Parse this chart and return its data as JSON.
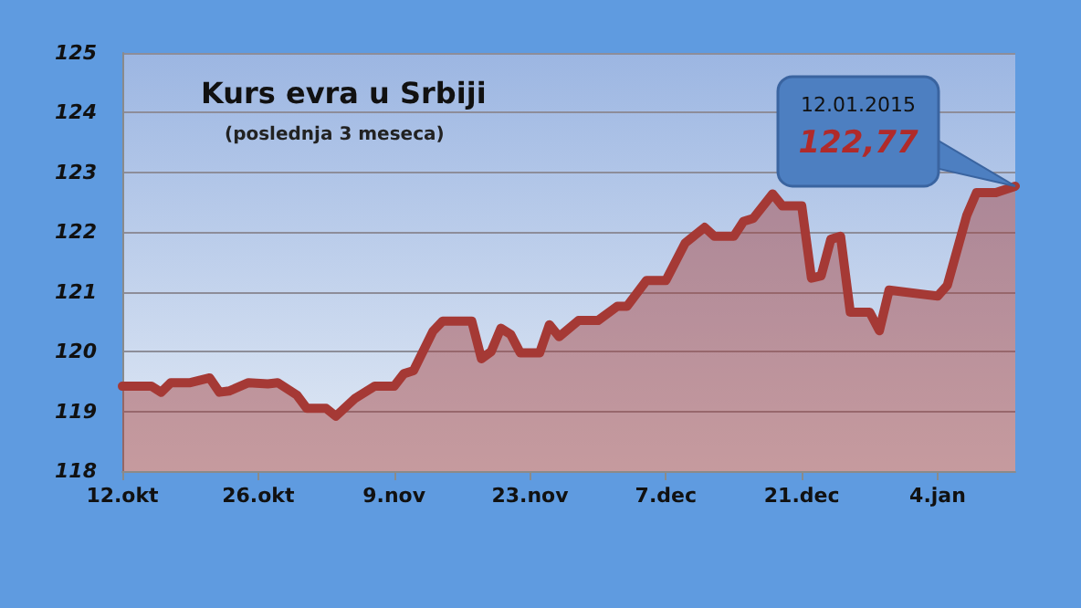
{
  "chart_data": {
    "type": "area",
    "title": "Kurs evra u Srbiji",
    "subtitle": "(poslednja 3 meseca)",
    "x": [
      "2014-10-12",
      "2014-10-15",
      "2014-10-16",
      "2014-10-17",
      "2014-10-19",
      "2014-10-21",
      "2014-10-22",
      "2014-10-23",
      "2014-10-25",
      "2014-10-27",
      "2014-10-28",
      "2014-10-30",
      "2014-10-31",
      "2014-11-02",
      "2014-11-03",
      "2014-11-05",
      "2014-11-07",
      "2014-11-09",
      "2014-11-10",
      "2014-11-11",
      "2014-11-13",
      "2014-11-14",
      "2014-11-17",
      "2014-11-18",
      "2014-11-19",
      "2014-11-20",
      "2014-11-21",
      "2014-11-22",
      "2014-11-24",
      "2014-11-25",
      "2014-11-26",
      "2014-11-28",
      "2014-11-30",
      "2014-12-02",
      "2014-12-03",
      "2014-12-05",
      "2014-12-07",
      "2014-12-09",
      "2014-12-11",
      "2014-12-12",
      "2014-12-14",
      "2014-12-15",
      "2014-12-16",
      "2014-12-18",
      "2014-12-19",
      "2014-12-21",
      "2014-12-22",
      "2014-12-23",
      "2014-12-24",
      "2014-12-25",
      "2014-12-26",
      "2014-12-28",
      "2014-12-29",
      "2014-12-30",
      "2015-01-04",
      "2015-01-05",
      "2015-01-07",
      "2015-01-08",
      "2015-01-10",
      "2015-01-12"
    ],
    "series": [
      {
        "color": "#a53935",
        "values": [
          119.42,
          119.42,
          119.32,
          119.48,
          119.48,
          119.56,
          119.32,
          119.34,
          119.48,
          119.46,
          119.48,
          119.27,
          119.05,
          119.05,
          118.92,
          119.22,
          119.42,
          119.42,
          119.63,
          119.68,
          120.34,
          120.51,
          120.51,
          119.88,
          120.0,
          120.39,
          120.29,
          119.98,
          119.98,
          120.45,
          120.25,
          120.52,
          120.52,
          120.76,
          120.76,
          121.19,
          121.19,
          121.82,
          122.08,
          121.93,
          121.93,
          122.18,
          122.23,
          122.64,
          122.44,
          122.44,
          121.23,
          121.27,
          121.88,
          121.93,
          120.66,
          120.66,
          120.35,
          121.03,
          120.93,
          121.11,
          122.28,
          122.66,
          122.66,
          122.77
        ]
      }
    ],
    "xlim": [
      "2014-10-12",
      "2015-01-12"
    ],
    "xticks": [
      {
        "value": "2014-10-12",
        "label": "12.okt"
      },
      {
        "value": "2014-10-26",
        "label": "26.okt"
      },
      {
        "value": "2014-11-09",
        "label": "9.nov"
      },
      {
        "value": "2014-11-23",
        "label": "23.nov"
      },
      {
        "value": "2014-12-07",
        "label": "7.dec"
      },
      {
        "value": "2014-12-21",
        "label": "21.dec"
      },
      {
        "value": "2015-01-04",
        "label": "4.jan"
      }
    ],
    "ylim": [
      118,
      125
    ],
    "yticks": [
      118,
      119,
      120,
      121,
      122,
      123,
      124,
      125
    ],
    "grid": "y",
    "annotations": [
      "12.01.2015",
      "122,77"
    ]
  }
}
